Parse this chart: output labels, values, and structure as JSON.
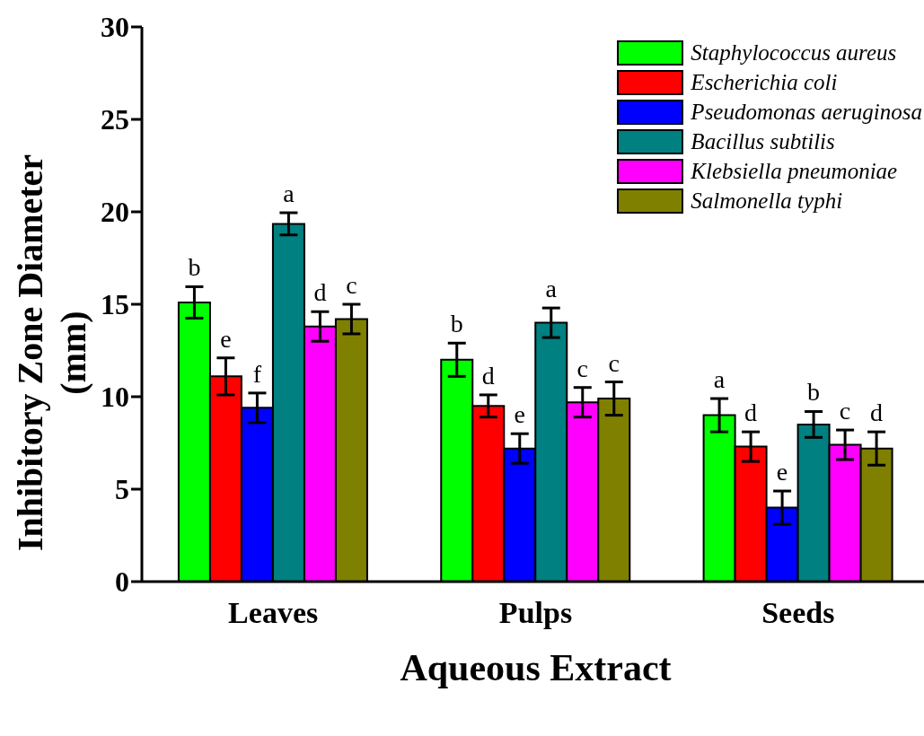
{
  "chart_data": {
    "type": "bar",
    "xlabel": "Aqueous Extract",
    "ylabel": "Inhibitory Zone Diameter (mm)",
    "categories": [
      "Leaves",
      "Pulps",
      "Seeds"
    ],
    "ylim": [
      0,
      30
    ],
    "yticks": [
      0,
      5,
      10,
      15,
      20,
      25,
      30
    ],
    "grid": false,
    "legend": "top right",
    "series": [
      {
        "name": "Staphylococcus aureus",
        "color": "#00ff00",
        "values": [
          15.1,
          12.0,
          9.0
        ],
        "errors": [
          0.85,
          0.9,
          0.9
        ],
        "value_labels": [
          "b",
          "b",
          "a"
        ]
      },
      {
        "name": "Escherichia coli",
        "color": "#ff0000",
        "values": [
          11.1,
          9.5,
          7.3
        ],
        "errors": [
          1.0,
          0.6,
          0.8
        ],
        "value_labels": [
          "e",
          "d",
          "d"
        ]
      },
      {
        "name": "Pseudomonas aeruginosa",
        "color": "#0000ff",
        "values": [
          9.4,
          7.2,
          4.0
        ],
        "errors": [
          0.8,
          0.8,
          0.9
        ],
        "value_labels": [
          "f",
          "e",
          "e"
        ]
      },
      {
        "name": "Bacillus subtilis",
        "color": "#008080",
        "values": [
          19.35,
          14.0,
          8.5
        ],
        "errors": [
          0.6,
          0.8,
          0.7
        ],
        "value_labels": [
          "a",
          "a",
          "b"
        ]
      },
      {
        "name": "Klebsiella pneumoniae",
        "color": "#ff00ff",
        "values": [
          13.8,
          9.7,
          7.4
        ],
        "errors": [
          0.8,
          0.8,
          0.8
        ],
        "value_labels": [
          "d",
          "c",
          "c"
        ]
      },
      {
        "name": "Salmonella typhi",
        "color": "#808000",
        "values": [
          14.2,
          9.9,
          7.2
        ],
        "errors": [
          0.8,
          0.9,
          0.9
        ],
        "value_labels": [
          "c",
          "c",
          "d"
        ]
      }
    ]
  }
}
